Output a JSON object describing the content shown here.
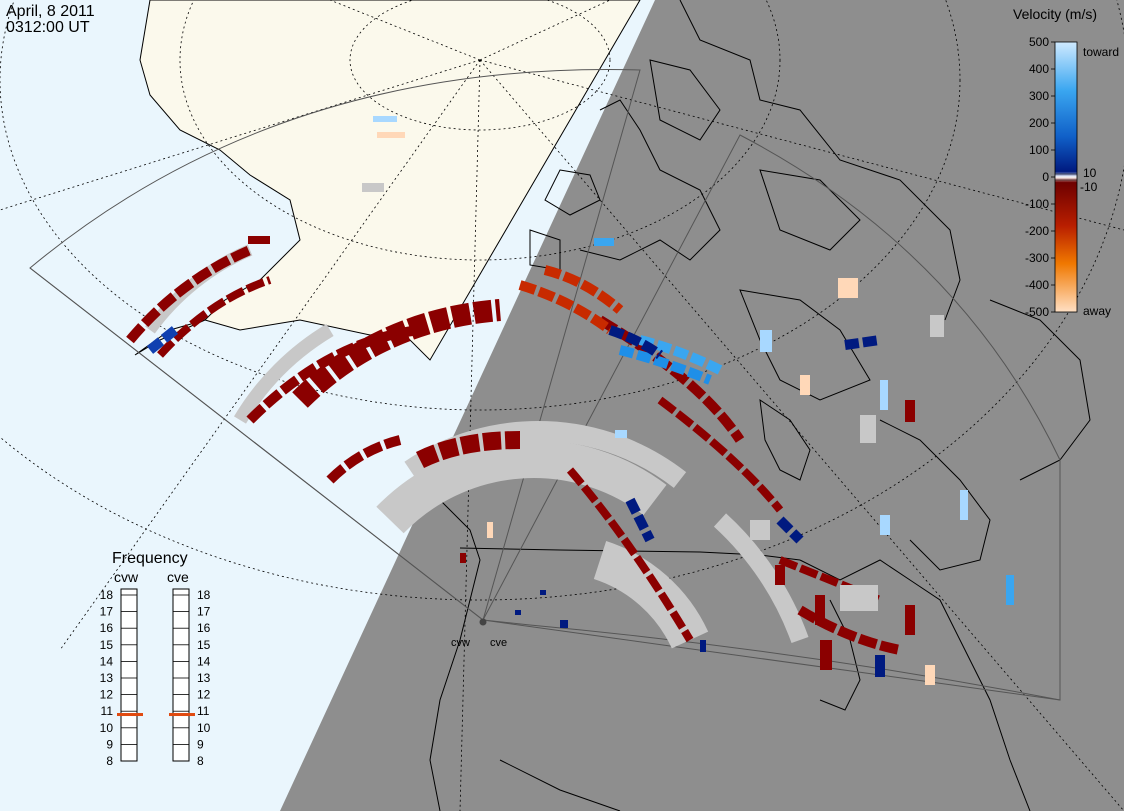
{
  "header": {
    "date": "April, 8 2011",
    "time": "0312:00 UT"
  },
  "velocity_legend": {
    "title": "Velocity (m/s)",
    "ticks": [
      "500",
      "400",
      "300",
      "200",
      "100",
      "0",
      "-100",
      "-200",
      "-300",
      "-400",
      "-500"
    ],
    "toward_label": "toward",
    "away_label": "away",
    "near_zero_pos": "10",
    "near_zero_neg": "-10",
    "colors": {
      "toward_max": "#cfeaff",
      "toward_mid": "#1f8fe8",
      "toward_low": "#001a80",
      "away_low": "#6e0000",
      "away_mid": "#d43a00",
      "away_max": "#ffe0c4",
      "ground_scatter": "#c8c8c8"
    }
  },
  "frequency_panel": {
    "title": "Frequency",
    "radars": [
      "cvw",
      "cve"
    ],
    "scale": [
      "18",
      "17",
      "16",
      "15",
      "14",
      "13",
      "12",
      "11",
      "10",
      "9",
      "8"
    ],
    "cvw_mhz": 10.8,
    "cve_mhz": 10.8,
    "marker_color": "#e04a10"
  },
  "map": {
    "radar_sites": [
      "cvw",
      "cve"
    ],
    "colors": {
      "ocean": "#eaf6fd",
      "land_day": "#fbf9ec",
      "night": "#8e8e8e",
      "coast": "#000000"
    }
  }
}
